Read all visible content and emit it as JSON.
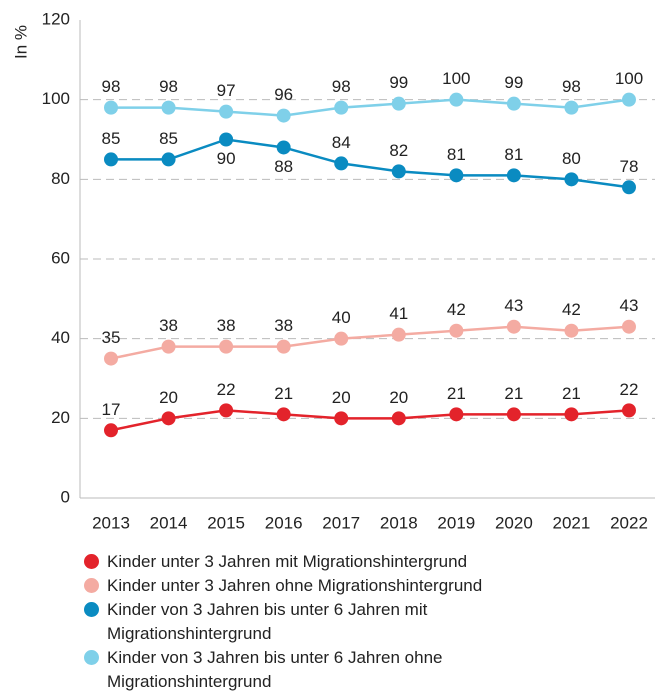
{
  "chart_data": {
    "type": "line",
    "y_label": "In %",
    "categories": [
      "2013",
      "2014",
      "2015",
      "2016",
      "2017",
      "2018",
      "2019",
      "2020",
      "2021",
      "2022"
    ],
    "series": [
      {
        "name": "Kinder unter 3 Jahren mit Migrationshintergrund",
        "color": "#e3232b",
        "values": [
          17,
          20,
          22,
          21,
          20,
          20,
          21,
          21,
          21,
          22
        ]
      },
      {
        "name": "Kinder unter 3 Jahren ohne Migrationshintergrund",
        "color": "#f4aba2",
        "values": [
          35,
          38,
          38,
          38,
          40,
          41,
          42,
          43,
          42,
          43
        ]
      },
      {
        "name": "Kinder von 3 Jahren bis unter 6 Jahren mit Migrationshintergrund",
        "color": "#0a8bc1",
        "values": [
          85,
          85,
          90,
          88,
          84,
          82,
          81,
          81,
          80,
          78
        ]
      },
      {
        "name": "Kinder von 3 Jahren bis unter 6 Jahren ohne Migrationshintergrund",
        "color": "#7fd0e9",
        "values": [
          98,
          98,
          97,
          96,
          98,
          99,
          100,
          99,
          98,
          100
        ]
      }
    ],
    "ylim": [
      0,
      120
    ],
    "yticks": [
      0,
      20,
      40,
      60,
      80,
      100,
      120
    ],
    "grid": true
  }
}
